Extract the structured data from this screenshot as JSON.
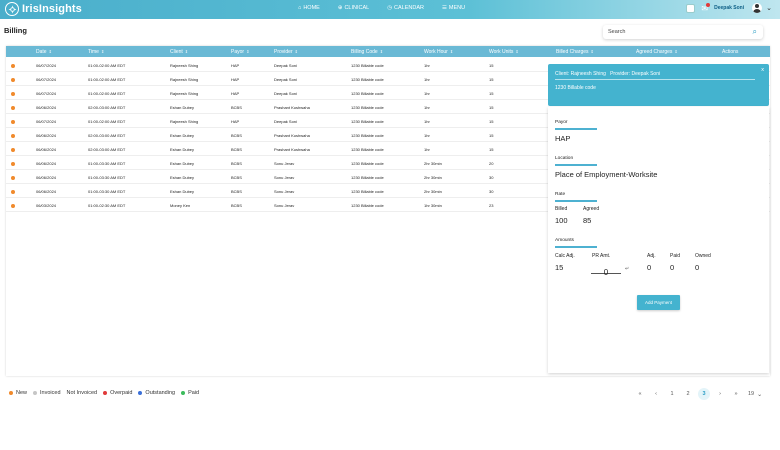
{
  "app": {
    "name": "IrisInsights"
  },
  "nav": [
    {
      "icon": "home-icon",
      "glyph": "⌂",
      "label": "HOME"
    },
    {
      "icon": "clinical-icon",
      "glyph": "⊕",
      "label": "CLINICAL"
    },
    {
      "icon": "calendar-icon",
      "glyph": "◷",
      "label": "CALENDAR"
    },
    {
      "icon": "menu-icon",
      "glyph": "☰",
      "label": "MENU"
    }
  ],
  "topbar": {
    "badge": "",
    "user_name": "Deepak Soni"
  },
  "page": {
    "title": "Billing"
  },
  "search": {
    "placeholder": "Search"
  },
  "table": {
    "columns": [
      "Date",
      "Time",
      "Client",
      "Payor",
      "Provider",
      "Billing Code",
      "Work Hour",
      "Work Units",
      "Billed Charges",
      "Agreed Charges",
      "Actions"
    ],
    "rows": [
      {
        "status": "new",
        "date": "06/07/2024",
        "time": "01:00-02:00 AM EDT",
        "client": "Rajneesh Shing",
        "payor": "HAP",
        "provider": "Deepak Soni",
        "billing_code": "1230 Billable code",
        "work_hour": "1hr",
        "work_units": "15"
      },
      {
        "status": "new",
        "date": "06/07/2024",
        "time": "01:00-02:00 AM EDT",
        "client": "Rajneesh Shing",
        "payor": "HAP",
        "provider": "Deepak Soni",
        "billing_code": "1230 Billable code",
        "work_hour": "1hr",
        "work_units": "15"
      },
      {
        "status": "new",
        "date": "06/07/2024",
        "time": "01:00-02:00 AM EDT",
        "client": "Rajneesh Shing",
        "payor": "HAP",
        "provider": "Deepak Soni",
        "billing_code": "1230 Billable code",
        "work_hour": "1hr",
        "work_units": "15"
      },
      {
        "status": "new",
        "date": "06/06/2024",
        "time": "02:00-03:00 AM EDT",
        "client": "Eshan Dubey",
        "payor": "BCBS",
        "provider": "Prashant Kushwaha",
        "billing_code": "1230 Billable code",
        "work_hour": "1hr",
        "work_units": "15"
      },
      {
        "status": "new",
        "date": "06/07/2024",
        "time": "01:00-02:00 AM EDT",
        "client": "Rajneesh Shing",
        "payor": "HAP",
        "provider": "Deepak Soni",
        "billing_code": "1230 Billable code",
        "work_hour": "1hr",
        "work_units": "15"
      },
      {
        "status": "new",
        "date": "06/06/2024",
        "time": "02:00-03:00 AM EDT",
        "client": "Eshan Dubey",
        "payor": "BCBS",
        "provider": "Prashant Kushwaha",
        "billing_code": "1230 Billable code",
        "work_hour": "1hr",
        "work_units": "15"
      },
      {
        "status": "new",
        "date": "06/06/2024",
        "time": "02:00-03:00 AM EDT",
        "client": "Eshan Dubey",
        "payor": "BCBS",
        "provider": "Prashant Kushwaha",
        "billing_code": "1230 Billable code",
        "work_hour": "1hr",
        "work_units": "15"
      },
      {
        "status": "new",
        "date": "06/06/2024",
        "time": "01:00-03:30 AM EDT",
        "client": "Eshan Dubey",
        "payor": "BCBS",
        "provider": "Sonu Jerav",
        "billing_code": "1230 Billable code",
        "work_hour": "2hr 30min",
        "work_units": "20"
      },
      {
        "status": "new",
        "date": "06/06/2024",
        "time": "01:00-03:30 AM EDT",
        "client": "Eshan Dubey",
        "payor": "BCBS",
        "provider": "Sonu Jerav",
        "billing_code": "1230 Billable code",
        "work_hour": "2hr 30min",
        "work_units": "30"
      },
      {
        "status": "new",
        "date": "06/06/2024",
        "time": "01:00-03:30 AM EDT",
        "client": "Eshan Dubey",
        "payor": "BCBS",
        "provider": "Sonu Jerav",
        "billing_code": "1230 Billable code",
        "work_hour": "2hr 30min",
        "work_units": "30"
      },
      {
        "status": "new",
        "date": "06/03/2024",
        "time": "01:00-02:30 AM EDT",
        "client": "Money Ken",
        "payor": "BCBS",
        "provider": "Sonu Jerav",
        "billing_code": "1230 Billable code",
        "work_hour": "1hr 30min",
        "work_units": "23"
      }
    ]
  },
  "detail": {
    "title_client_label": "Client:",
    "title_client": "Rajneesh Shing",
    "title_provider_label": "Provider:",
    "title_provider": "Deepak Soni",
    "billing_code": "1230 Billable code",
    "close_label": "x",
    "payor_label": "Payor",
    "payor": "HAP",
    "location_label": "Location",
    "location": "Place of Employment-Worksite",
    "rate_label": "Rate",
    "billed_label": "Billed",
    "billed": "100",
    "agreed_label": "Agreed",
    "agreed": "85",
    "amounts_label": "Amounts",
    "calc_adj_label": "Calc Adj.",
    "calc_adj": "15",
    "pr_amt_label": "PR Amt.",
    "pr_amt": "0",
    "adj_label": "Adj.",
    "adj": "0",
    "paid_label": "Paid",
    "paid": "0",
    "owned_label": "Owned",
    "owned": "0",
    "add_payment_label": "Add Payment"
  },
  "legend": [
    {
      "label": "New",
      "color": "#f08a2c"
    },
    {
      "label": "Invoiced",
      "color": "#c6c6c6"
    },
    {
      "label": "Not Invoiced",
      "color": null
    },
    {
      "label": "Overpaid",
      "color": "#e03a3a"
    },
    {
      "label": "Outstanding",
      "color": "#3a6fd8"
    },
    {
      "label": "Paid",
      "color": "#3dbb5c"
    }
  ],
  "pagination": {
    "first": "«",
    "prev": "‹",
    "pages": [
      "1",
      "2",
      "3"
    ],
    "active": "3",
    "next": "›",
    "last": "»",
    "page_size": "19"
  },
  "colors": {
    "accent": "#44b3cf",
    "header": "#6ab9d5",
    "new_status": "#f08a2c"
  }
}
